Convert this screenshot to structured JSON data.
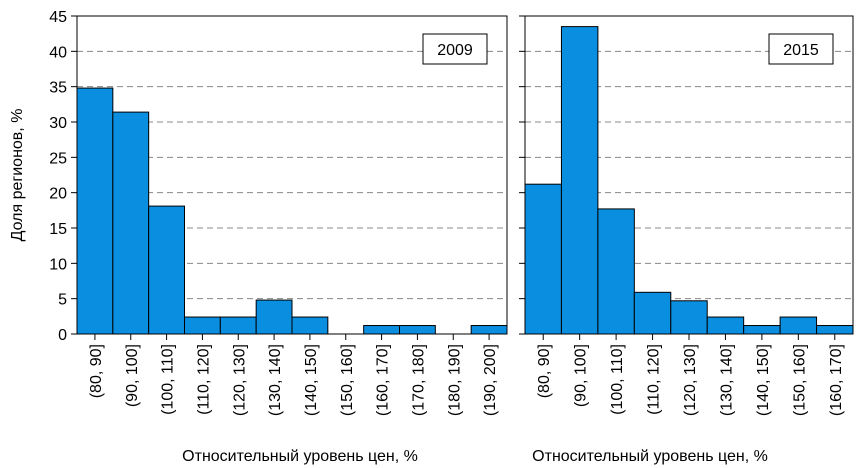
{
  "chart_data": [
    {
      "type": "bar",
      "annotation": "2009",
      "ylabel": "Доля регионов, %",
      "xlabel": "Относительный уровень цен, %",
      "categories": [
        "(80, 90]",
        "(90, 100]",
        "(100, 110]",
        "(110, 120]",
        "(120, 130]",
        "(130, 140]",
        "(140, 150]",
        "(150, 160]",
        "(160, 170]",
        "(170, 180]",
        "(180, 190]",
        "(190, 200]"
      ],
      "values": [
        34.8,
        31.4,
        18.1,
        2.4,
        2.4,
        4.8,
        2.4,
        0,
        1.2,
        1.2,
        0,
        1.2
      ],
      "color": "#0a8edf",
      "ylim": [
        0,
        45
      ],
      "yticks": [
        0,
        5,
        10,
        15,
        20,
        25,
        30,
        35,
        40,
        45
      ],
      "grid": true
    },
    {
      "type": "bar",
      "annotation": "2015",
      "xlabel": "Относительный уровень цен, %",
      "categories": [
        "(80, 90]",
        "(90, 100]",
        "(100, 110]",
        "(110, 120]",
        "(120, 130]",
        "(130, 140]",
        "(140, 150]",
        "(150, 160]",
        "(160, 170]"
      ],
      "values": [
        21.2,
        43.5,
        17.7,
        5.9,
        4.7,
        2.4,
        1.2,
        2.4,
        1.2
      ],
      "color": "#0a8edf",
      "ylim": [
        0,
        45
      ],
      "yticks": [
        0,
        5,
        10,
        15,
        20,
        25,
        30,
        35,
        40,
        45
      ],
      "grid": true
    }
  ]
}
